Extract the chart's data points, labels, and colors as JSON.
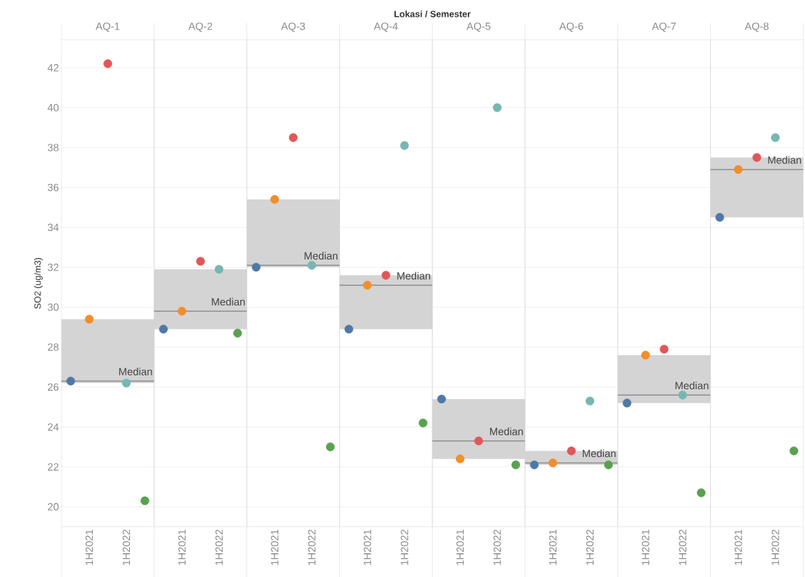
{
  "chart_data": [
    {
      "type": "scatter",
      "title": "AQ-1",
      "ylabel": "SO2 (ug/m3)",
      "annotations": [
        "Lokasi / Semester"
      ],
      "categories": [
        null,
        "1H2021",
        null,
        "1H2022",
        null
      ],
      "values": [
        26.3,
        29.4,
        42.2,
        26.2,
        20.3
      ],
      "colors": [
        "#4e79a7",
        "#f28e2b",
        "#e15759",
        "#76b7b2",
        "#59a14f"
      ],
      "ylim": [
        19,
        43.4
      ],
      "yticks": [
        20,
        22,
        24,
        26,
        28,
        30,
        32,
        34,
        36,
        38,
        40,
        42
      ],
      "grid": "y",
      "marker": "circle",
      "bands": [
        {
          "axis": "y",
          "from": 26.2,
          "to": 29.4,
          "color": "#d4d4d4"
        }
      ],
      "ref_lines": [
        {
          "axis": "y",
          "value": 26.3,
          "label": "Median",
          "color": "#8c8c8c"
        }
      ]
    },
    {
      "type": "scatter",
      "title": "AQ-2",
      "tick_labels": "x",
      "categories": [
        null,
        "1H2021",
        null,
        "1H2022",
        null
      ],
      "values": [
        28.9,
        29.8,
        32.3,
        31.9,
        28.7
      ],
      "colors": [
        "#4e79a7",
        "#f28e2b",
        "#e15759",
        "#76b7b2",
        "#59a14f"
      ],
      "ylim": [
        19,
        43.4
      ],
      "yticks": [
        20,
        22,
        24,
        26,
        28,
        30,
        32,
        34,
        36,
        38,
        40,
        42
      ],
      "grid": "y",
      "marker": "circle",
      "bands": [
        {
          "axis": "y",
          "from": 28.9,
          "to": 31.9,
          "color": "#d4d4d4"
        }
      ],
      "ref_lines": [
        {
          "axis": "y",
          "value": 29.8,
          "label": "Median",
          "color": "#8c8c8c"
        }
      ]
    },
    {
      "type": "scatter",
      "title": "AQ-3",
      "tick_labels": "x",
      "categories": [
        null,
        "1H2021",
        null,
        "1H2022",
        null
      ],
      "values": [
        32.0,
        35.4,
        38.5,
        32.1,
        23.0
      ],
      "colors": [
        "#4e79a7",
        "#f28e2b",
        "#e15759",
        "#76b7b2",
        "#59a14f"
      ],
      "ylim": [
        19,
        43.4
      ],
      "yticks": [
        20,
        22,
        24,
        26,
        28,
        30,
        32,
        34,
        36,
        38,
        40,
        42
      ],
      "grid": "y",
      "marker": "circle",
      "bands": [
        {
          "axis": "y",
          "from": 32.0,
          "to": 35.4,
          "color": "#d4d4d4"
        }
      ],
      "ref_lines": [
        {
          "axis": "y",
          "value": 32.1,
          "label": "Median",
          "color": "#8c8c8c"
        }
      ]
    },
    {
      "type": "scatter",
      "title": "AQ-4",
      "tick_labels": "x",
      "categories": [
        null,
        "1H2021",
        null,
        "1H2022",
        null
      ],
      "values": [
        28.9,
        31.1,
        31.6,
        38.1,
        24.2
      ],
      "colors": [
        "#4e79a7",
        "#f28e2b",
        "#e15759",
        "#76b7b2",
        "#59a14f"
      ],
      "ylim": [
        19,
        43.4
      ],
      "yticks": [
        20,
        22,
        24,
        26,
        28,
        30,
        32,
        34,
        36,
        38,
        40,
        42
      ],
      "grid": "y",
      "marker": "circle",
      "bands": [
        {
          "axis": "y",
          "from": 28.9,
          "to": 31.6,
          "color": "#d4d4d4"
        }
      ],
      "ref_lines": [
        {
          "axis": "y",
          "value": 31.1,
          "label": "Median",
          "color": "#8c8c8c"
        }
      ]
    },
    {
      "type": "scatter",
      "title": "AQ-5",
      "tick_labels": "x",
      "categories": [
        null,
        "1H2021",
        null,
        "1H2022",
        null
      ],
      "values": [
        25.4,
        22.4,
        23.3,
        40.0,
        22.1
      ],
      "colors": [
        "#4e79a7",
        "#f28e2b",
        "#e15759",
        "#76b7b2",
        "#59a14f"
      ],
      "ylim": [
        19,
        43.4
      ],
      "yticks": [
        20,
        22,
        24,
        26,
        28,
        30,
        32,
        34,
        36,
        38,
        40,
        42
      ],
      "grid": "y",
      "marker": "circle",
      "bands": [
        {
          "axis": "y",
          "from": 22.4,
          "to": 25.4,
          "color": "#d4d4d4"
        }
      ],
      "ref_lines": [
        {
          "axis": "y",
          "value": 23.3,
          "label": "Median",
          "color": "#8c8c8c"
        }
      ]
    },
    {
      "type": "scatter",
      "title": "AQ-6",
      "tick_labels": "x",
      "categories": [
        null,
        "1H2021",
        null,
        "1H2022",
        null
      ],
      "values": [
        22.1,
        22.2,
        22.8,
        25.3,
        22.1
      ],
      "colors": [
        "#4e79a7",
        "#f28e2b",
        "#e15759",
        "#76b7b2",
        "#59a14f"
      ],
      "ylim": [
        19,
        43.4
      ],
      "yticks": [
        20,
        22,
        24,
        26,
        28,
        30,
        32,
        34,
        36,
        38,
        40,
        42
      ],
      "grid": "y",
      "marker": "circle",
      "bands": [
        {
          "axis": "y",
          "from": 22.1,
          "to": 22.8,
          "color": "#d4d4d4"
        }
      ],
      "ref_lines": [
        {
          "axis": "y",
          "value": 22.2,
          "label": "Median",
          "color": "#8c8c8c"
        }
      ]
    },
    {
      "type": "scatter",
      "title": "AQ-7",
      "tick_labels": "x",
      "categories": [
        null,
        "1H2021",
        null,
        "1H2022",
        null
      ],
      "values": [
        25.2,
        27.6,
        27.9,
        25.6,
        20.7
      ],
      "colors": [
        "#4e79a7",
        "#f28e2b",
        "#e15759",
        "#76b7b2",
        "#59a14f"
      ],
      "ylim": [
        19,
        43.4
      ],
      "yticks": [
        20,
        22,
        24,
        26,
        28,
        30,
        32,
        34,
        36,
        38,
        40,
        42
      ],
      "grid": "y",
      "marker": "circle",
      "bands": [
        {
          "axis": "y",
          "from": 25.2,
          "to": 27.6,
          "color": "#d4d4d4"
        }
      ],
      "ref_lines": [
        {
          "axis": "y",
          "value": 25.6,
          "label": "Median",
          "color": "#8c8c8c"
        }
      ]
    },
    {
      "type": "scatter",
      "title": "AQ-8",
      "tick_labels": "x",
      "categories": [
        null,
        "1H2021",
        null,
        "1H2022",
        null
      ],
      "values": [
        34.5,
        36.9,
        37.5,
        38.5,
        22.8
      ],
      "colors": [
        "#4e79a7",
        "#f28e2b",
        "#e15759",
        "#76b7b2",
        "#59a14f"
      ],
      "ylim": [
        19,
        43.4
      ],
      "yticks": [
        20,
        22,
        24,
        26,
        28,
        30,
        32,
        34,
        36,
        38,
        40,
        42
      ],
      "grid": "y",
      "marker": "circle",
      "bands": [
        {
          "axis": "y",
          "from": 34.5,
          "to": 37.5,
          "color": "#d4d4d4"
        }
      ],
      "ref_lines": [
        {
          "axis": "y",
          "value": 36.9,
          "label": "Median",
          "color": "#8c8c8c"
        }
      ]
    }
  ]
}
